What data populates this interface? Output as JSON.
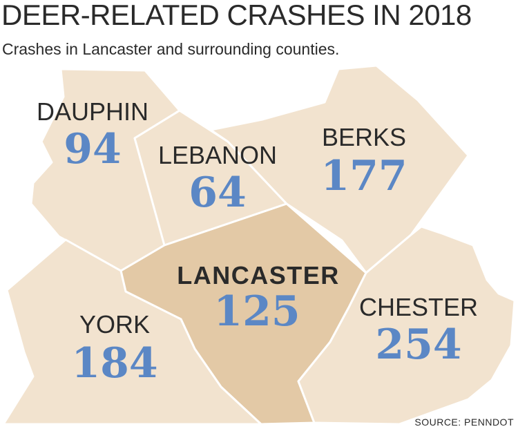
{
  "title": "DEER-RELATED CRASHES IN 2018",
  "subtitle": "Crashes in Lancaster and surrounding counties.",
  "source": "SOURCE: PENNDOT",
  "colors": {
    "county_fill": "#f2e3cf",
    "highlight_fill": "#e3c9a6",
    "value_text": "#5b87c5",
    "border": "#ffffff"
  },
  "counties": {
    "dauphin": {
      "name": "DAUPHIN",
      "crashes": "94"
    },
    "lebanon": {
      "name": "LEBANON",
      "crashes": "64"
    },
    "berks": {
      "name": "BERKS",
      "crashes": "177"
    },
    "lancaster": {
      "name": "LANCASTER",
      "crashes": "125"
    },
    "york": {
      "name": "YORK",
      "crashes": "184"
    },
    "chester": {
      "name": "CHESTER",
      "crashes": "254"
    }
  }
}
